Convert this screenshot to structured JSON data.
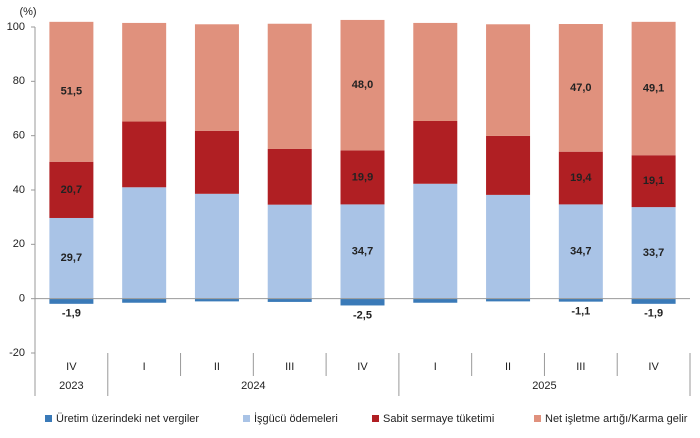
{
  "chart_data": {
    "type": "stacked-bar",
    "y_unit_label": "(%)",
    "categories": [
      "IV",
      "I",
      "II",
      "III",
      "IV",
      "I",
      "II",
      "III",
      "IV"
    ],
    "groups": [
      {
        "label": "2023",
        "count": 1
      },
      {
        "label": "2024",
        "count": 4
      },
      {
        "label": "2025",
        "count": 4
      }
    ],
    "series": [
      {
        "name": "Üretim üzerindeki net vergiler",
        "color": "#3a7ab8",
        "values": [
          -1.9,
          -1.5,
          -1.0,
          -1.2,
          -2.5,
          -1.5,
          -1.0,
          -1.1,
          -1.9
        ],
        "value_labels": [
          "-1,9",
          null,
          null,
          null,
          "-2,5",
          null,
          null,
          "-1,1",
          "-1,9"
        ]
      },
      {
        "name": "İşgücü ödemeleri",
        "color": "#a9c3e6",
        "values": [
          29.7,
          41.0,
          38.6,
          34.6,
          34.7,
          42.3,
          38.2,
          34.7,
          33.7
        ],
        "value_labels": [
          "29,7",
          null,
          null,
          null,
          "34,7",
          null,
          null,
          "34,7",
          "33,7"
        ]
      },
      {
        "name": "Sabit sermaye tüketimi",
        "color": "#b01f23",
        "values": [
          20.7,
          24.2,
          23.2,
          20.5,
          19.9,
          23.1,
          21.7,
          19.4,
          19.1
        ],
        "value_labels": [
          "20,7",
          null,
          null,
          null,
          "19,9",
          null,
          null,
          "19,4",
          "19,1"
        ]
      },
      {
        "name": "Net işletme artığı/Karma gelir",
        "color": "#e0917d",
        "values": [
          51.5,
          36.3,
          39.2,
          46.1,
          48.0,
          36.1,
          41.1,
          47.0,
          49.1
        ],
        "value_labels": [
          "51,5",
          null,
          null,
          null,
          "48,0",
          null,
          null,
          "47,0",
          "49,1"
        ]
      }
    ],
    "ylim": [
      -20,
      100
    ],
    "yticks": [
      -20,
      0,
      20,
      40,
      60,
      80,
      100
    ],
    "grid": false
  }
}
